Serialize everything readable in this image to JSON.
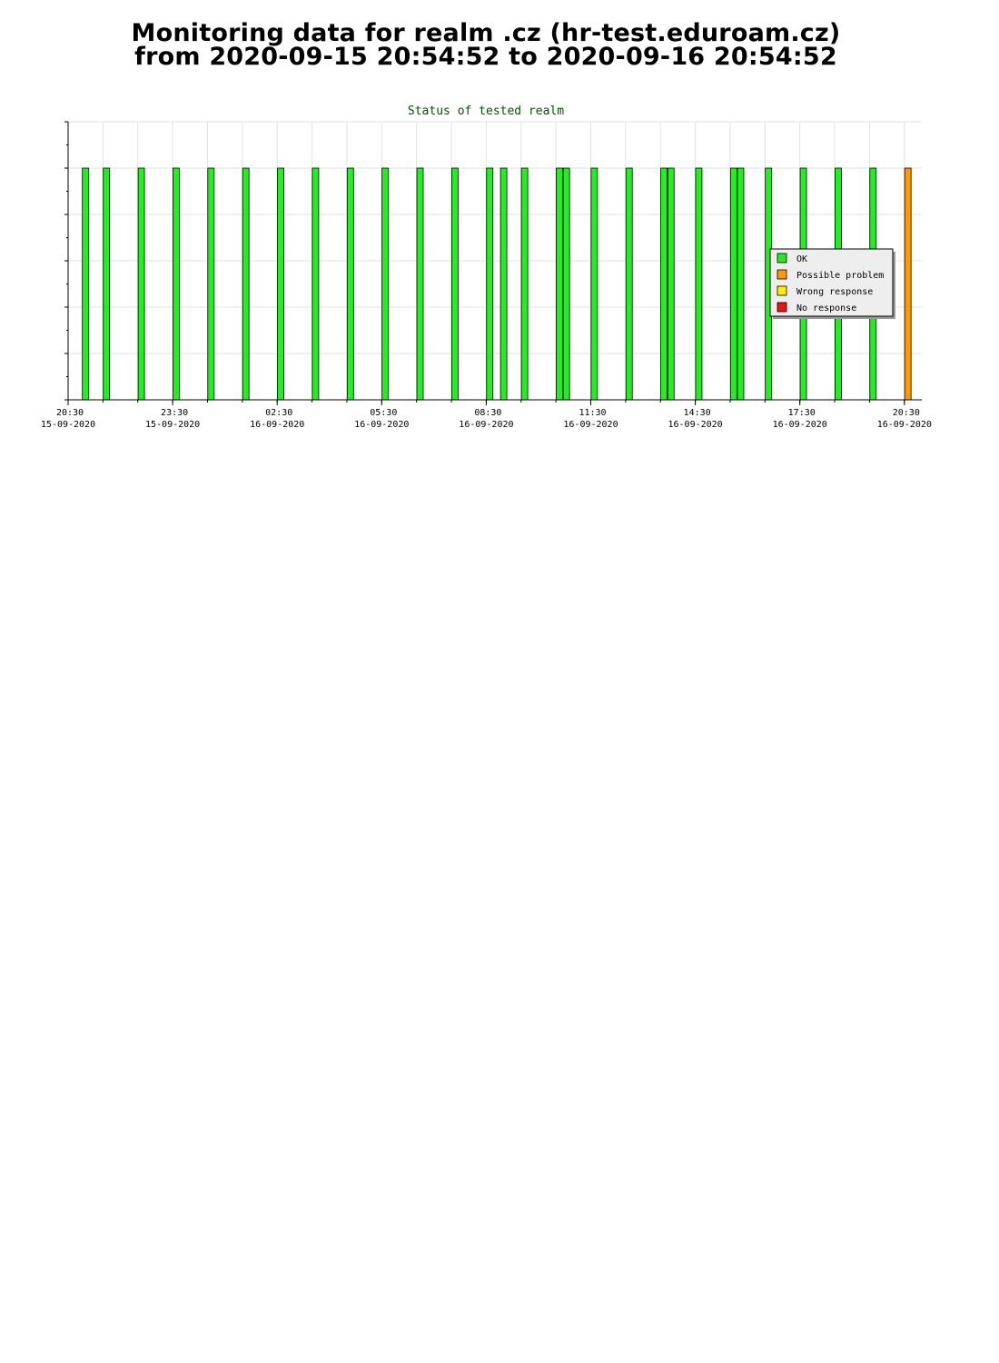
{
  "header": {
    "title_line1": "Monitoring data for realm .cz  (hr-test.eduroam.cz)",
    "title_line2": "from 2020-09-15 20:54:52 to 2020-09-16 20:54:52"
  },
  "chart_data": {
    "type": "bar",
    "title": "Status of tested realm",
    "xlabel": "",
    "ylabel": "",
    "ylim": [
      0,
      6
    ],
    "x_unit": "hours since 2020-09-15 20:30",
    "grid": true,
    "legend_position": "right",
    "x_ticks": [
      {
        "time": "20:30",
        "date": "15-09-2020"
      },
      {
        "time": "23:30",
        "date": "15-09-2020"
      },
      {
        "time": "02:30",
        "date": "16-09-2020"
      },
      {
        "time": "05:30",
        "date": "16-09-2020"
      },
      {
        "time": "08:30",
        "date": "16-09-2020"
      },
      {
        "time": "11:30",
        "date": "16-09-2020"
      },
      {
        "time": "14:30",
        "date": "16-09-2020"
      },
      {
        "time": "17:30",
        "date": "16-09-2020"
      },
      {
        "time": "20:30",
        "date": "16-09-2020"
      }
    ],
    "legend": [
      {
        "label": "OK",
        "color": "#22ee22"
      },
      {
        "label": "Possible problem",
        "color": "#ff9900"
      },
      {
        "label": "Wrong response",
        "color": "#ffee00"
      },
      {
        "label": "No response",
        "color": "#ee1111"
      }
    ],
    "series": [
      {
        "name": "OK",
        "color": "#22ee22",
        "x": [
          0.5,
          1.1,
          2.1,
          3.1,
          4.1,
          5.1,
          6.1,
          7.1,
          8.1,
          9.1,
          10.1,
          11.1,
          12.1,
          12.5,
          13.1,
          14.1,
          14.3,
          15.1,
          16.1,
          17.1,
          17.3,
          18.1,
          19.1,
          19.3,
          20.1,
          21.1,
          22.1,
          23.1
        ],
        "values": [
          5,
          5,
          5,
          5,
          5,
          5,
          5,
          5,
          5,
          5,
          5,
          5,
          5,
          5,
          5,
          5,
          5,
          5,
          5,
          5,
          5,
          5,
          5,
          5,
          5,
          5,
          5,
          5
        ]
      },
      {
        "name": "Possible problem",
        "color": "#ff9900",
        "x": [
          24.1
        ],
        "values": [
          5
        ]
      }
    ]
  }
}
